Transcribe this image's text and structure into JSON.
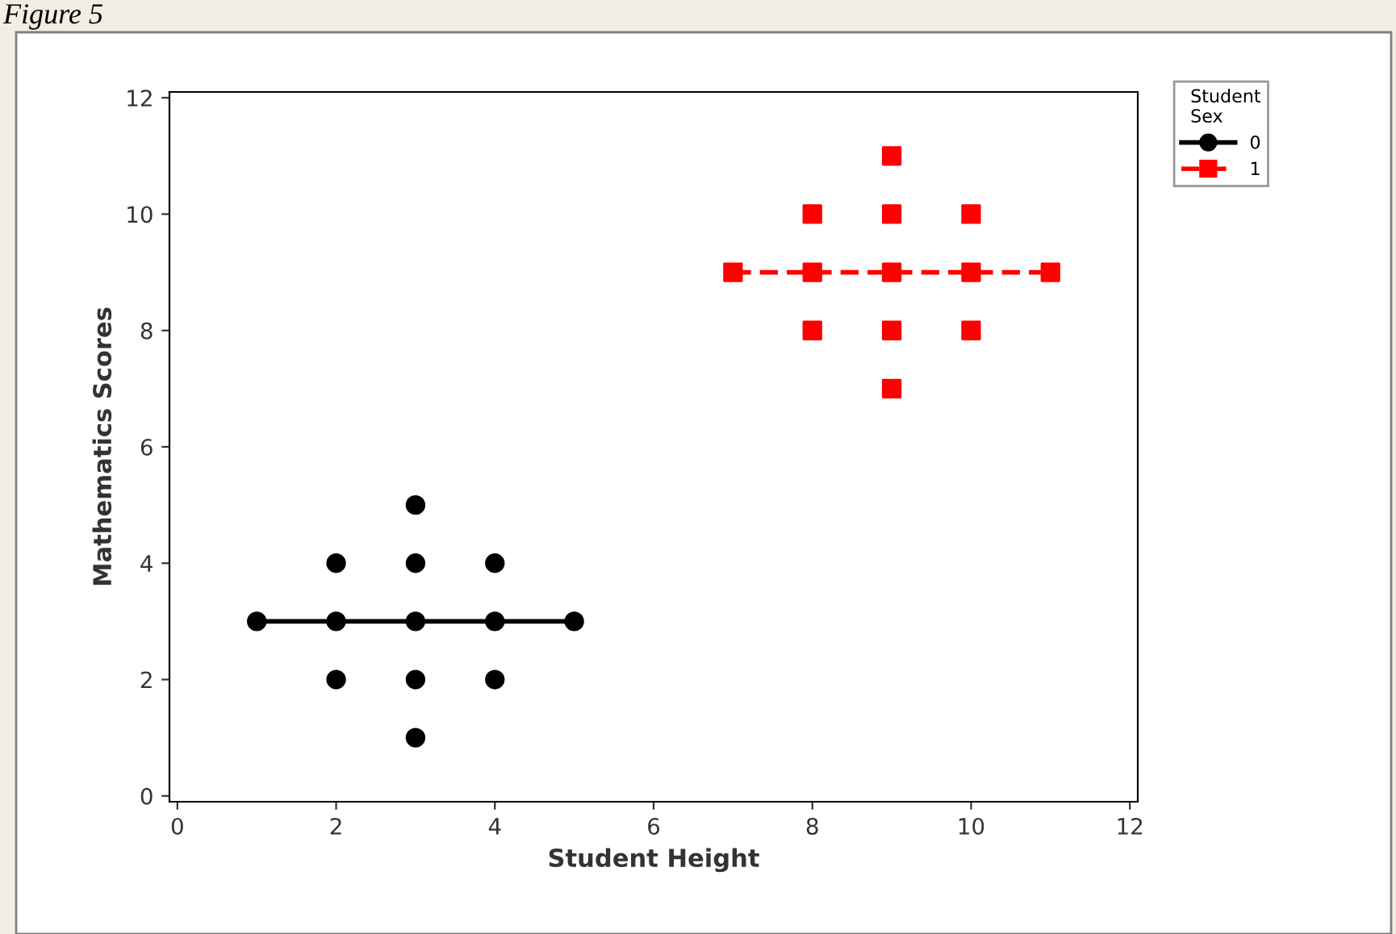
{
  "chart_data": {
    "type": "scatter",
    "xlabel": "Student Height",
    "ylabel": "Mathematics Scores",
    "legend_title": "Student\nSex",
    "annotations": [
      "Figure 5"
    ],
    "series": [
      {
        "name": "0",
        "color": "#000000",
        "marker": "circle",
        "line_style": "solid",
        "x": [
          1,
          2,
          2,
          2,
          3,
          3,
          3,
          3,
          3,
          4,
          4,
          4,
          5
        ],
        "values": [
          3,
          2,
          3,
          4,
          1,
          2,
          3,
          4,
          5,
          2,
          3,
          4,
          3
        ]
      },
      {
        "name": "1",
        "color": "#ff0000",
        "marker": "square",
        "line_style": "dashed",
        "x": [
          7,
          8,
          8,
          8,
          9,
          9,
          9,
          9,
          9,
          10,
          10,
          10,
          11
        ],
        "values": [
          9,
          8,
          9,
          10,
          7,
          8,
          9,
          10,
          11,
          8,
          9,
          10,
          9
        ]
      },
      {
        "type": "line",
        "color": "#000000",
        "line_style": "solid",
        "x": [
          1,
          5
        ],
        "values": [
          3,
          3
        ]
      },
      {
        "type": "line",
        "color": "#ff0000",
        "line_style": "dashed",
        "x": [
          7,
          11
        ],
        "values": [
          9,
          9
        ]
      }
    ],
    "xlim": [
      -0.1,
      12.1
    ],
    "ylim": [
      -0.1,
      12.1
    ],
    "xticks": [
      0,
      2,
      4,
      6,
      8,
      10,
      12
    ],
    "yticks": [
      0,
      2,
      4,
      6,
      8,
      10,
      12
    ],
    "grid": false,
    "legend": "top right"
  }
}
